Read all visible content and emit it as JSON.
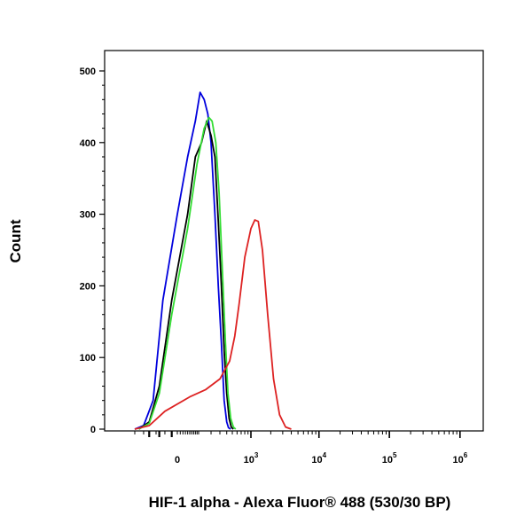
{
  "chart_data": {
    "type": "line",
    "title": "",
    "xlabel": "HIF-1 alpha - Alexa Fluor® 488 (530/30 BP)",
    "ylabel": "Count",
    "ylim": [
      0,
      520
    ],
    "yticks": [
      0,
      100,
      200,
      300,
      400,
      500
    ],
    "x_scale": "biexponential",
    "xticks": [
      {
        "base": "10",
        "exp": "3",
        "value": 1000
      },
      {
        "base": "10",
        "exp": "4",
        "value": 10000
      },
      {
        "base": "10",
        "exp": "5",
        "value": 100000
      },
      {
        "base": "10",
        "exp": "6",
        "value": 1000000
      }
    ],
    "x_zero_label": "0",
    "series": [
      {
        "color": "#0000dd",
        "x": [
          -300,
          -200,
          -120,
          -60,
          0,
          40,
          80,
          110,
          140,
          170,
          200,
          240,
          280,
          320,
          360,
          400,
          430,
          470
        ],
        "y": [
          0,
          5,
          40,
          180,
          300,
          380,
          430,
          470,
          460,
          440,
          400,
          300,
          200,
          120,
          40,
          10,
          2,
          0
        ]
      },
      {
        "color": "#000000",
        "x": [
          -250,
          -150,
          -80,
          -20,
          40,
          80,
          120,
          160,
          200,
          240,
          280,
          320,
          360,
          400,
          440,
          480,
          520
        ],
        "y": [
          0,
          10,
          60,
          180,
          300,
          380,
          400,
          430,
          410,
          380,
          290,
          200,
          110,
          50,
          15,
          3,
          0
        ]
      },
      {
        "color": "#33dd33",
        "x": [
          -250,
          -150,
          -80,
          -20,
          40,
          90,
          140,
          180,
          210,
          250,
          290,
          330,
          380,
          420,
          470,
          520,
          570
        ],
        "y": [
          0,
          8,
          50,
          160,
          280,
          370,
          420,
          435,
          430,
          400,
          330,
          230,
          120,
          50,
          15,
          3,
          0
        ]
      },
      {
        "color": "#dd2222",
        "x": [
          -300,
          -150,
          -50,
          50,
          150,
          300,
          450,
          550,
          650,
          800,
          1000,
          1150,
          1300,
          1500,
          1800,
          2200,
          2700,
          3300,
          4000
        ],
        "y": [
          0,
          5,
          25,
          45,
          55,
          70,
          95,
          130,
          175,
          240,
          280,
          292,
          290,
          250,
          160,
          70,
          20,
          3,
          0
        ]
      }
    ]
  }
}
